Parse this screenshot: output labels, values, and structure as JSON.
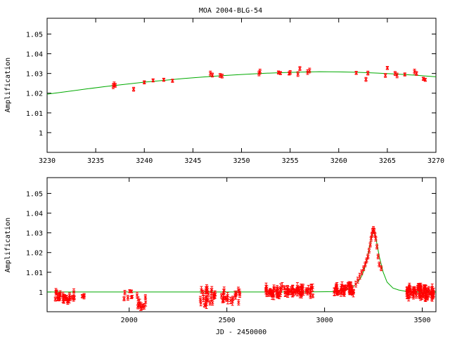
{
  "figure_title": "MOA 2004-BLG-54",
  "chart_data": [
    {
      "type": "scatter",
      "title": "MOA 2004-BLG-54",
      "xlabel": "",
      "ylabel": "Amplification",
      "xlim": [
        3230,
        3270
      ],
      "ylim": [
        0.99,
        1.058
      ],
      "xticks": [
        3230,
        3235,
        3240,
        3245,
        3250,
        3255,
        3260,
        3265,
        3270
      ],
      "yticks": [
        1,
        1.01,
        1.02,
        1.03,
        1.04,
        1.05
      ],
      "grid": false,
      "model_color": "#00aa00",
      "data_color": "#ff0000",
      "model": {
        "x": [
          3230,
          3232,
          3234,
          3236,
          3238,
          3240,
          3242,
          3244,
          3246,
          3248,
          3250,
          3252,
          3254,
          3256,
          3258,
          3260,
          3262,
          3264,
          3266,
          3268,
          3270
        ],
        "y": [
          1.0195,
          1.0208,
          1.0221,
          1.0234,
          1.0245,
          1.0256,
          1.0265,
          1.0274,
          1.0282,
          1.0289,
          1.0295,
          1.03,
          1.0304,
          1.0307,
          1.0309,
          1.0308,
          1.0306,
          1.0302,
          1.0297,
          1.0291,
          1.0283
        ]
      },
      "points": {
        "x": [
          3236.8,
          3236.9,
          3237.0,
          3238.9,
          3240.0,
          3240.9,
          3242.0,
          3242.9,
          3246.8,
          3247.0,
          3247.8,
          3248.0,
          3251.8,
          3251.9,
          3253.8,
          3254.0,
          3254.9,
          3255.0,
          3255.8,
          3256.0,
          3256.8,
          3257.0,
          3261.8,
          3262.8,
          3263.0,
          3264.8,
          3265.0,
          3265.8,
          3266.0,
          3266.8,
          3267.8,
          3268.0,
          3268.7,
          3268.9
        ],
        "y": [
          1.0235,
          1.0245,
          1.024,
          1.022,
          1.0255,
          1.0265,
          1.0268,
          1.0263,
          1.03,
          1.0292,
          1.029,
          1.0287,
          1.03,
          1.031,
          1.0305,
          1.0302,
          1.03,
          1.0305,
          1.0297,
          1.0325,
          1.0307,
          1.0315,
          1.0303,
          1.027,
          1.0302,
          1.029,
          1.0328,
          1.03,
          1.029,
          1.0295,
          1.031,
          1.03,
          1.0273,
          1.0268
        ],
        "err": [
          0.0012,
          0.0012,
          0.001,
          0.001,
          0.0008,
          0.0008,
          0.0008,
          0.0008,
          0.0012,
          0.001,
          0.001,
          0.001,
          0.0012,
          0.0012,
          0.0008,
          0.0008,
          0.0008,
          0.001,
          0.0012,
          0.001,
          0.0012,
          0.0012,
          0.0008,
          0.001,
          0.001,
          0.001,
          0.0008,
          0.001,
          0.0012,
          0.0008,
          0.0012,
          0.001,
          0.0008,
          0.0008
        ]
      }
    },
    {
      "type": "scatter",
      "title": "",
      "xlabel": "JD - 2450000",
      "ylabel": "Amplification",
      "xlim": [
        1580,
        3570
      ],
      "ylim": [
        0.99,
        1.058
      ],
      "xticks": [
        2000,
        2500,
        3000,
        3500
      ],
      "yticks": [
        1,
        1.01,
        1.02,
        1.03,
        1.04,
        1.05
      ],
      "grid": false,
      "model_color": "#00aa00",
      "data_color": "#ff0000",
      "model": {
        "x": [
          1580,
          2900,
          3050,
          3100,
          3130,
          3150,
          3170,
          3190,
          3205,
          3220,
          3232,
          3242,
          3250,
          3258,
          3268,
          3280,
          3300,
          3320,
          3350,
          3380,
          3420,
          3480,
          3570
        ],
        "y": [
          1.0,
          1.0,
          1.0002,
          1.001,
          1.002,
          1.003,
          1.005,
          1.008,
          1.012,
          1.018,
          1.024,
          1.028,
          1.0305,
          1.0295,
          1.0245,
          1.018,
          1.01,
          1.005,
          1.002,
          1.001,
          1.0003,
          1.0,
          1.0
        ]
      },
      "clusters": [
        {
          "x0": 1620,
          "x1": 1720,
          "n": 30,
          "ymin": 0.9945,
          "ymax": 1.0005,
          "err": 0.0012
        },
        {
          "x0": 1760,
          "x1": 1780,
          "n": 3,
          "ymin": 0.9975,
          "ymax": 0.9985,
          "err": 0.0008
        },
        {
          "x0": 1970,
          "x1": 2020,
          "n": 7,
          "ymin": 0.9965,
          "ymax": 1.001,
          "err": 0.001
        },
        {
          "x0": 2040,
          "x1": 2100,
          "n": 12,
          "ymin": 0.992,
          "ymax": 1.0005,
          "err": 0.0015
        },
        {
          "x0": 2360,
          "x1": 2440,
          "n": 26,
          "ymin": 0.993,
          "ymax": 1.002,
          "err": 0.0015
        },
        {
          "x0": 2470,
          "x1": 2570,
          "n": 20,
          "ymin": 0.994,
          "ymax": 1.0015,
          "err": 0.0015
        },
        {
          "x0": 2700,
          "x1": 2940,
          "n": 80,
          "ymin": 0.998,
          "ymax": 1.003,
          "err": 0.0015
        },
        {
          "x0": 3050,
          "x1": 3150,
          "n": 40,
          "ymin": 0.999,
          "ymax": 1.004,
          "err": 0.0015
        },
        {
          "x0": 3420,
          "x1": 3560,
          "n": 70,
          "ymin": 0.997,
          "ymax": 1.003,
          "err": 0.0015
        }
      ],
      "peak_points": {
        "x": [
          3160,
          3170,
          3180,
          3190,
          3200,
          3208,
          3215,
          3222,
          3228,
          3234,
          3238,
          3242,
          3246,
          3250,
          3254,
          3258,
          3262,
          3268,
          3274,
          3280,
          3290
        ],
        "y": [
          1.004,
          1.006,
          1.008,
          1.01,
          1.012,
          1.014,
          1.016,
          1.018,
          1.021,
          1.024,
          1.027,
          1.029,
          1.031,
          1.032,
          1.031,
          1.029,
          1.027,
          1.023,
          1.018,
          1.014,
          1.012
        ],
        "err": [
          0.0015,
          0.0015,
          0.0015,
          0.0012,
          0.0012,
          0.0012,
          0.0012,
          0.0012,
          0.0012,
          0.0012,
          0.0012,
          0.0012,
          0.0012,
          0.0012,
          0.0012,
          0.0012,
          0.0012,
          0.0012,
          0.0012,
          0.0012,
          0.0012
        ]
      }
    }
  ]
}
